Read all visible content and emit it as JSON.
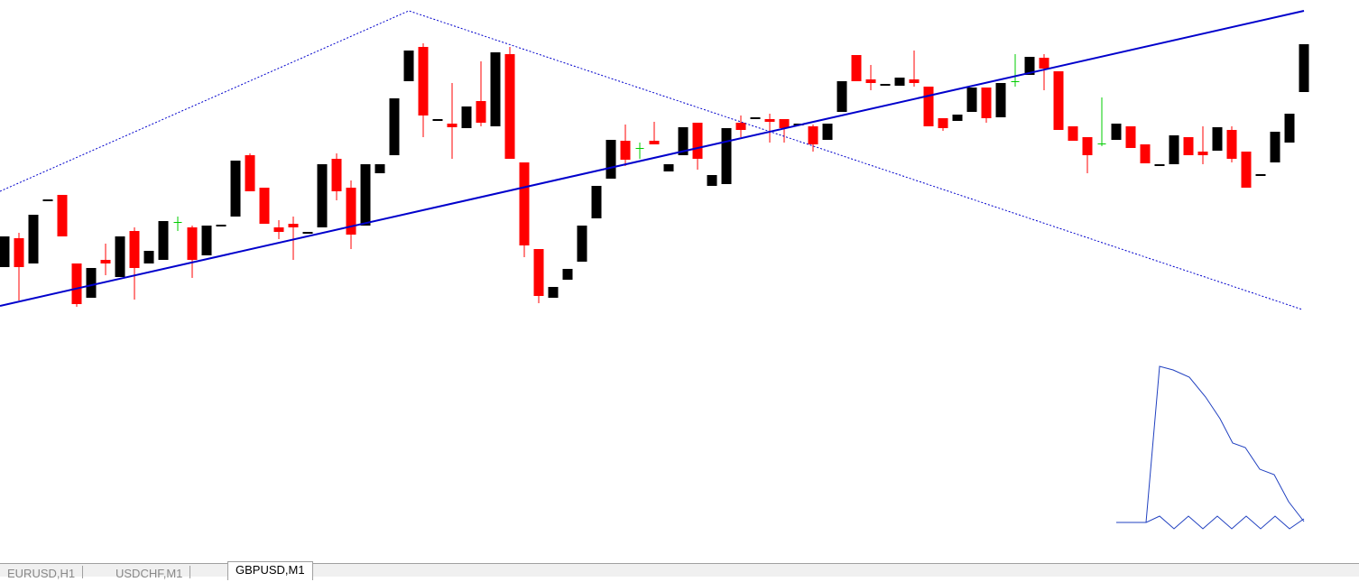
{
  "tabs": [
    "EURUSD,H1",
    "USDCHF,M1",
    "GBPUSD,M1"
  ],
  "active_tab": 2
}
